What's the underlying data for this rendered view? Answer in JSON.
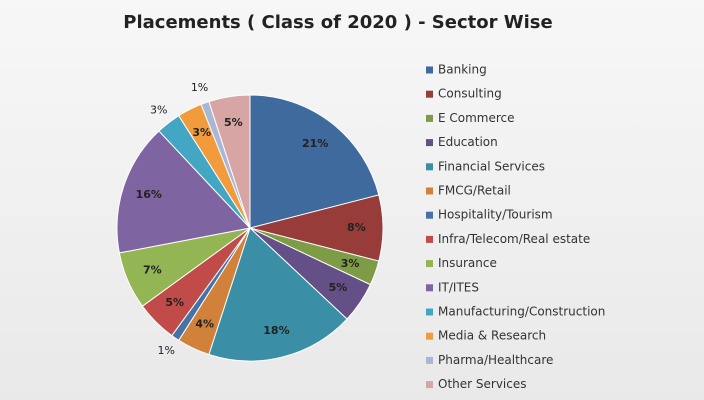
{
  "chart_data": {
    "type": "pie",
    "title": "Placements ( Class of 2020 ) - Sector Wise",
    "categories": [
      "Banking",
      "Consulting",
      "E Commerce",
      "Education",
      "Financial Services",
      "FMCG/Retail",
      "Hospitality/Tourism",
      "Infra/Telecom/Real estate",
      "Insurance",
      "IT/ITES",
      "Manufacturing/Construction",
      "Media & Research",
      "Pharma/Healthcare",
      "Other Services"
    ],
    "values": [
      21,
      8,
      3,
      5,
      18,
      4,
      1,
      5,
      7,
      16,
      3,
      3,
      1,
      5
    ],
    "value_labels": [
      "21%",
      "8%",
      "3%",
      "5%",
      "18%",
      "4%",
      "1%",
      "5%",
      "7%",
      "16%",
      "3%",
      "3%",
      "1%",
      "5%"
    ],
    "colors": [
      "#3f6a9e",
      "#983c3a",
      "#7e9c45",
      "#644f86",
      "#3a8ea5",
      "#d1813a",
      "#4672a8",
      "#c04b48",
      "#93b554",
      "#7e64a0",
      "#43a7c4",
      "#f29b3d",
      "#a9b6d6",
      "#d8a5a5"
    ],
    "legend": "right"
  }
}
